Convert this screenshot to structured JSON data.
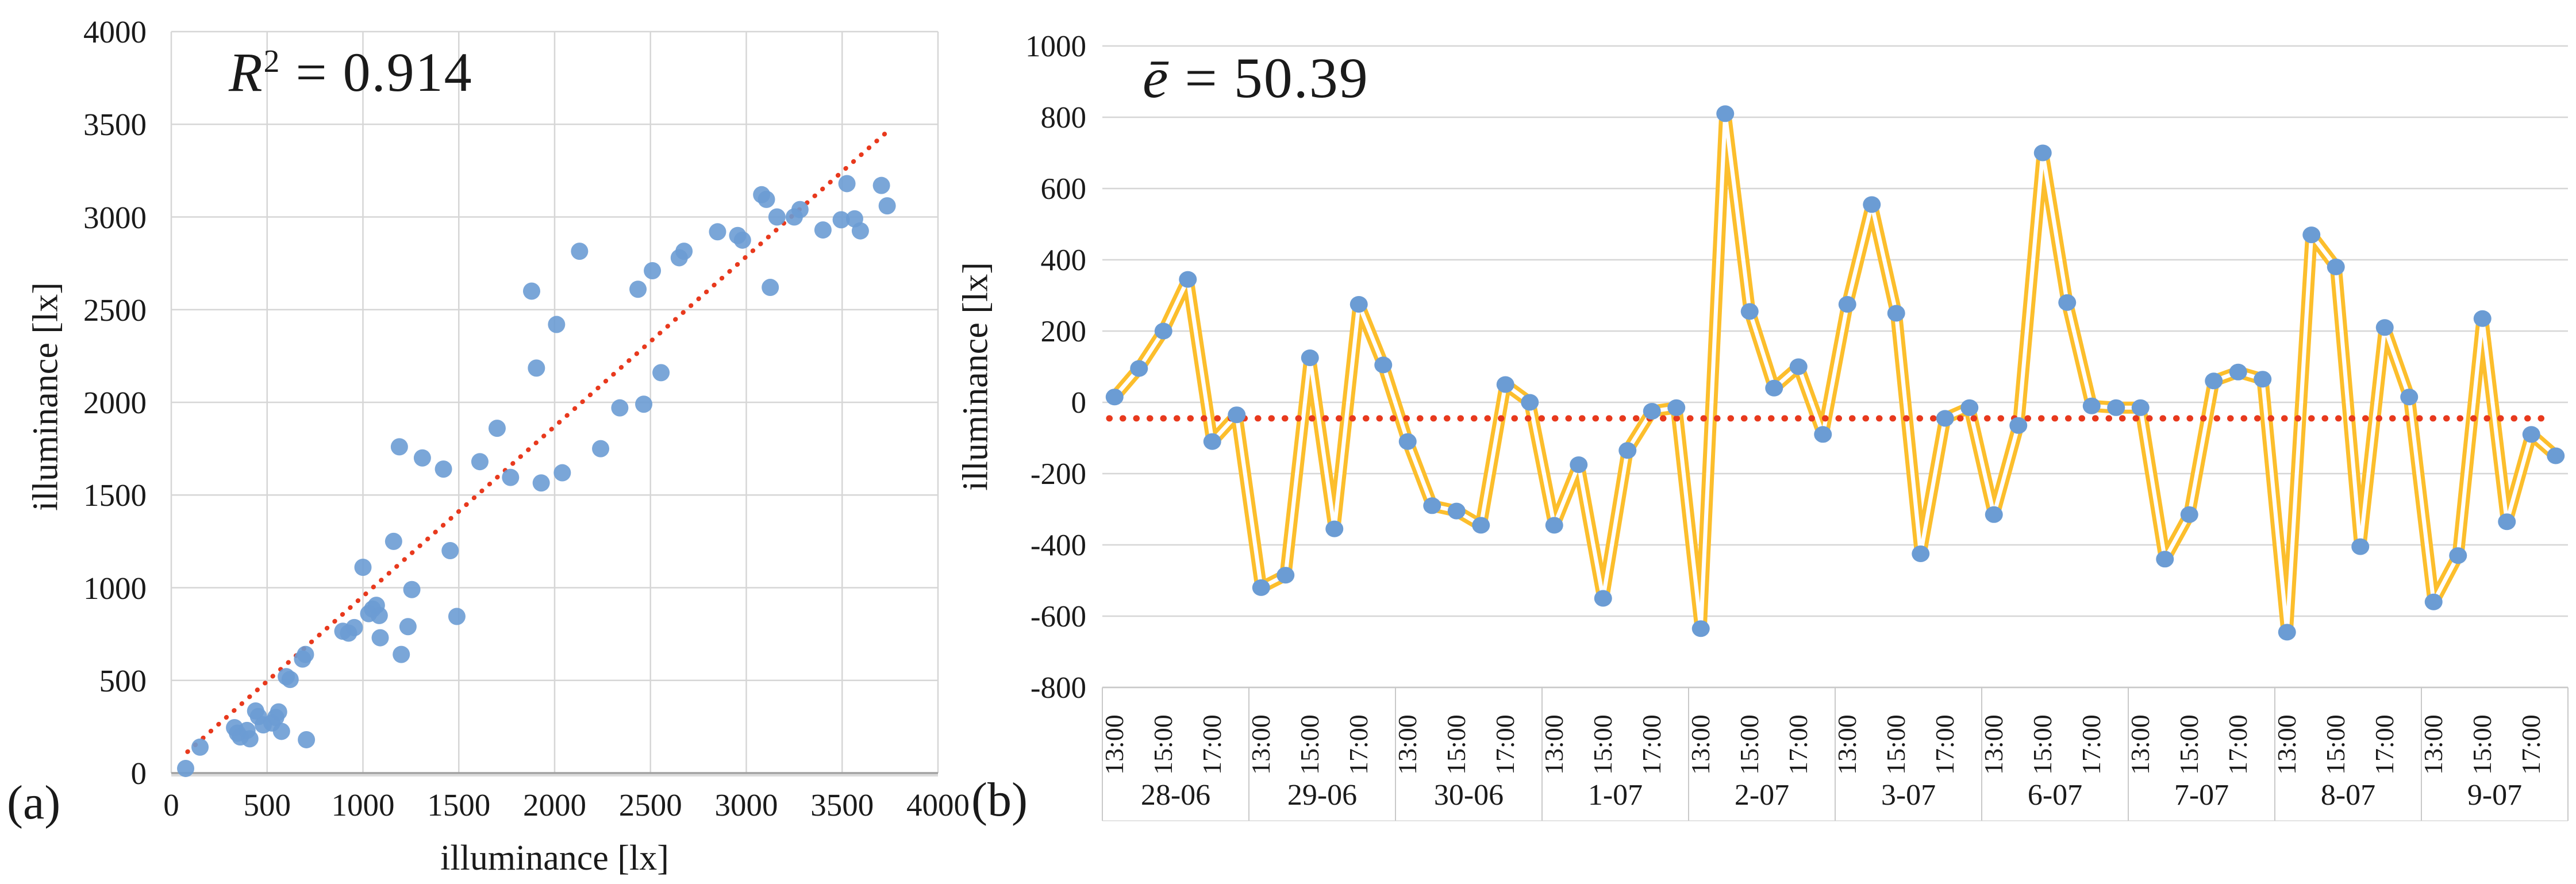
{
  "panel_a": {
    "label": "(a)",
    "annotation": {
      "lead": "R",
      "sup": "2",
      "rest": " = 0.914"
    }
  },
  "panel_b": {
    "label": "(b)",
    "annotation": {
      "lead": "ē",
      "rest": " = 50.39"
    }
  },
  "colors": {
    "marker_blue": "#6B9CD4",
    "line_yellow": "#FCBE2C",
    "line_core_white": "#FFFFFF",
    "trend_red": "#E8391D",
    "gridline": "#D6D6D6",
    "axis_line": "#A0A0A0",
    "axis_shadow": "#DCDCDC",
    "separator": "#C9C9C9",
    "text": "#1A1A1A"
  },
  "chart_data": [
    {
      "type": "scatter",
      "panel": "a",
      "title": "R² = 0.914",
      "xlabel": "illuminance [lx]",
      "ylabel": "illuminance [lx]",
      "xlim": [
        0,
        4000
      ],
      "ylim": [
        0,
        4000
      ],
      "xticks": [
        0,
        500,
        1000,
        1500,
        2000,
        2500,
        3000,
        3500,
        4000
      ],
      "yticks": [
        4000,
        3500,
        3000,
        2500,
        2000,
        1500,
        1000,
        500,
        0
      ],
      "grid": "both",
      "trendline": {
        "style": "dotted",
        "x1": 85,
        "y1": 115,
        "x2": 3735,
        "y2": 3460
      },
      "points": [
        [
          75,
          25
        ],
        [
          150,
          140
        ],
        [
          330,
          245
        ],
        [
          345,
          215
        ],
        [
          360,
          195
        ],
        [
          395,
          230
        ],
        [
          410,
          185
        ],
        [
          440,
          335
        ],
        [
          455,
          305
        ],
        [
          480,
          260
        ],
        [
          525,
          270
        ],
        [
          545,
          300
        ],
        [
          560,
          330
        ],
        [
          575,
          225
        ],
        [
          600,
          520
        ],
        [
          620,
          505
        ],
        [
          685,
          615
        ],
        [
          700,
          640
        ],
        [
          705,
          180
        ],
        [
          895,
          765
        ],
        [
          925,
          755
        ],
        [
          955,
          785
        ],
        [
          1000,
          1110
        ],
        [
          1030,
          860
        ],
        [
          1050,
          885
        ],
        [
          1070,
          905
        ],
        [
          1085,
          850
        ],
        [
          1090,
          730
        ],
        [
          1160,
          1250
        ],
        [
          1200,
          640
        ],
        [
          1235,
          790
        ],
        [
          1255,
          990
        ],
        [
          1190,
          1760
        ],
        [
          1310,
          1700
        ],
        [
          1420,
          1640
        ],
        [
          1610,
          1680
        ],
        [
          1770,
          1595
        ],
        [
          1455,
          1200
        ],
        [
          1490,
          845
        ],
        [
          1700,
          1860
        ],
        [
          1880,
          2600
        ],
        [
          1905,
          2185
        ],
        [
          1930,
          1565
        ],
        [
          2010,
          2420
        ],
        [
          2040,
          1620
        ],
        [
          2130,
          2815
        ],
        [
          2240,
          1750
        ],
        [
          2340,
          1970
        ],
        [
          2435,
          2610
        ],
        [
          2465,
          1990
        ],
        [
          2510,
          2710
        ],
        [
          2555,
          2160
        ],
        [
          2650,
          2780
        ],
        [
          2675,
          2815
        ],
        [
          2850,
          2920
        ],
        [
          2955,
          2900
        ],
        [
          2980,
          2875
        ],
        [
          3080,
          3120
        ],
        [
          3105,
          3095
        ],
        [
          3125,
          2620
        ],
        [
          3160,
          3000
        ],
        [
          3250,
          3000
        ],
        [
          3280,
          3040
        ],
        [
          3400,
          2930
        ],
        [
          3495,
          2985
        ],
        [
          3525,
          3180
        ],
        [
          3565,
          2990
        ],
        [
          3595,
          2925
        ],
        [
          3705,
          3170
        ],
        [
          3735,
          3060
        ]
      ]
    },
    {
      "type": "line",
      "panel": "b",
      "title": "ē = 50.39",
      "ylabel": "illuminance [lx]",
      "ylim": [
        -800,
        1000
      ],
      "yticks": [
        1000,
        800,
        600,
        400,
        200,
        0,
        -200,
        -400,
        -600,
        -800
      ],
      "grid": "horizontal",
      "legend": "none",
      "mean_line": -45,
      "time_ticks": [
        "13:00",
        "15:00",
        "17:00"
      ],
      "points_per_day": 6,
      "days": [
        "28-06",
        "29-06",
        "30-06",
        "1-07",
        "2-07",
        "3-07",
        "6-07",
        "7-07",
        "8-07",
        "9-07"
      ],
      "values_by_day": [
        [
          15,
          95,
          200,
          345,
          -110,
          -35
        ],
        [
          -520,
          -485,
          125,
          -355,
          275,
          105
        ],
        [
          -110,
          -290,
          -305,
          -345,
          50,
          0
        ],
        [
          -345,
          -175,
          -550,
          -135,
          -25,
          -15
        ],
        [
          -635,
          810,
          255,
          40,
          100,
          -90
        ],
        [
          275,
          555,
          250,
          -425,
          -45,
          -15
        ],
        [
          -315,
          -65,
          700,
          280,
          -10,
          -15
        ],
        [
          -15,
          -440,
          -315,
          60,
          85,
          65
        ],
        [
          -645,
          470,
          380,
          -405,
          210,
          15
        ],
        [
          -560,
          -430,
          235,
          -335,
          -90,
          -150
        ]
      ]
    }
  ]
}
